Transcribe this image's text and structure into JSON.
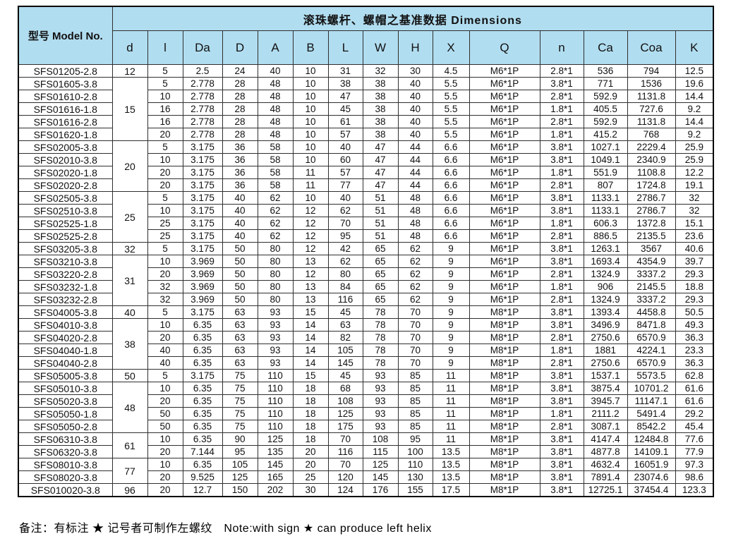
{
  "table": {
    "title": "滚珠螺杆、螺帽之基准数据  Dimensions",
    "model_col_header": "型号 Model No.",
    "dim_columns": [
      "d",
      "l",
      "Da",
      "D",
      "A",
      "B",
      "L",
      "W",
      "H",
      "X",
      "Q",
      "n",
      "Ca",
      "Coa",
      "K"
    ],
    "rows": [
      {
        "model": "SFS01205-2.8",
        "d": "12",
        "d_rowspan": 1,
        "cells": [
          "5",
          "2.5",
          "24",
          "40",
          "10",
          "31",
          "32",
          "30",
          "4.5",
          "M6*1P",
          "2.8*1",
          "536",
          "794",
          "12.5"
        ]
      },
      {
        "model": "SFS01605-3.8",
        "d": "15",
        "d_rowspan": 5,
        "cells": [
          "5",
          "2.778",
          "28",
          "48",
          "10",
          "38",
          "38",
          "40",
          "5.5",
          "M6*1P",
          "3.8*1",
          "771",
          "1536",
          "19.6"
        ]
      },
      {
        "model": "SFS01610-2.8",
        "d": null,
        "cells": [
          "10",
          "2.778",
          "28",
          "48",
          "10",
          "47",
          "38",
          "40",
          "5.5",
          "M6*1P",
          "2.8*1",
          "592.9",
          "1131.8",
          "14.4"
        ]
      },
      {
        "model": "SFS01616-1.8",
        "d": null,
        "cells": [
          "16",
          "2.778",
          "28",
          "48",
          "10",
          "45",
          "38",
          "40",
          "5.5",
          "M6*1P",
          "1.8*1",
          "405.5",
          "727.6",
          "9.2"
        ]
      },
      {
        "model": "SFS01616-2.8",
        "d": null,
        "cells": [
          "16",
          "2.778",
          "28",
          "48",
          "10",
          "61",
          "38",
          "40",
          "5.5",
          "M6*1P",
          "2.8*1",
          "592.9",
          "1131.8",
          "14.4"
        ]
      },
      {
        "model": "SFS01620-1.8",
        "d": null,
        "cells": [
          "20",
          "2.778",
          "28",
          "48",
          "10",
          "57",
          "38",
          "40",
          "5.5",
          "M6*1P",
          "1.8*1",
          "415.2",
          "768",
          "9.2"
        ]
      },
      {
        "model": "SFS02005-3.8",
        "d": "20",
        "d_rowspan": 4,
        "cells": [
          "5",
          "3.175",
          "36",
          "58",
          "10",
          "40",
          "47",
          "44",
          "6.6",
          "M6*1P",
          "3.8*1",
          "1027.1",
          "2229.4",
          "25.9"
        ]
      },
      {
        "model": "SFS02010-3.8",
        "d": null,
        "cells": [
          "10",
          "3.175",
          "36",
          "58",
          "10",
          "60",
          "47",
          "44",
          "6.6",
          "M6*1P",
          "3.8*1",
          "1049.1",
          "2340.9",
          "25.9"
        ]
      },
      {
        "model": "SFS02020-1.8",
        "d": null,
        "cells": [
          "20",
          "3.175",
          "36",
          "58",
          "11",
          "57",
          "47",
          "44",
          "6.6",
          "M6*1P",
          "1.8*1",
          "551.9",
          "1108.8",
          "12.2"
        ]
      },
      {
        "model": "SFS02020-2.8",
        "d": null,
        "cells": [
          "20",
          "3.175",
          "36",
          "58",
          "11",
          "77",
          "47",
          "44",
          "6.6",
          "M6*1P",
          "2.8*1",
          "807",
          "1724.8",
          "19.1"
        ]
      },
      {
        "model": "SFS02505-3.8",
        "d": "25",
        "d_rowspan": 4,
        "cells": [
          "5",
          "3.175",
          "40",
          "62",
          "10",
          "40",
          "51",
          "48",
          "6.6",
          "M6*1P",
          "3.8*1",
          "1133.1",
          "2786.7",
          "32"
        ]
      },
      {
        "model": "SFS02510-3.8",
        "d": null,
        "cells": [
          "10",
          "3.175",
          "40",
          "62",
          "12",
          "62",
          "51",
          "48",
          "6.6",
          "M6*1P",
          "3.8*1",
          "1133.1",
          "2786.7",
          "32"
        ]
      },
      {
        "model": "SFS02525-1.8",
        "d": null,
        "cells": [
          "25",
          "3.175",
          "40",
          "62",
          "12",
          "70",
          "51",
          "48",
          "6.6",
          "M6*1P",
          "1.8*1",
          "606.3",
          "1372.8",
          "15.1"
        ]
      },
      {
        "model": "SFS02525-2.8",
        "d": null,
        "cells": [
          "25",
          "3.175",
          "40",
          "62",
          "12",
          "95",
          "51",
          "48",
          "6.6",
          "M6*1P",
          "2.8*1",
          "886.5",
          "2135.5",
          "23.6"
        ]
      },
      {
        "model": "SFS03205-3.8",
        "d": "32",
        "d_rowspan": 1,
        "cells": [
          "5",
          "3.175",
          "50",
          "80",
          "12",
          "42",
          "65",
          "62",
          "9",
          "M6*1P",
          "3.8*1",
          "1263.1",
          "3567",
          "40.6"
        ]
      },
      {
        "model": "SFS03210-3.8",
        "d": "31",
        "d_rowspan": 4,
        "cells": [
          "10",
          "3.969",
          "50",
          "80",
          "13",
          "62",
          "65",
          "62",
          "9",
          "M6*1P",
          "3.8*1",
          "1693.4",
          "4354.9",
          "39.7"
        ]
      },
      {
        "model": "SFS03220-2.8",
        "d": null,
        "cells": [
          "20",
          "3.969",
          "50",
          "80",
          "12",
          "80",
          "65",
          "62",
          "9",
          "M6*1P",
          "2.8*1",
          "1324.9",
          "3337.2",
          "29.3"
        ]
      },
      {
        "model": "SFS03232-1.8",
        "d": null,
        "cells": [
          "32",
          "3.969",
          "50",
          "80",
          "13",
          "84",
          "65",
          "62",
          "9",
          "M6*1P",
          "1.8*1",
          "906",
          "2145.5",
          "18.8"
        ]
      },
      {
        "model": "SFS03232-2.8",
        "d": null,
        "cells": [
          "32",
          "3.969",
          "50",
          "80",
          "13",
          "116",
          "65",
          "62",
          "9",
          "M6*1P",
          "2.8*1",
          "1324.9",
          "3337.2",
          "29.3"
        ]
      },
      {
        "model": "SFS04005-3.8",
        "d": "40",
        "d_rowspan": 1,
        "cells": [
          "5",
          "3.175",
          "63",
          "93",
          "15",
          "45",
          "78",
          "70",
          "9",
          "M8*1P",
          "3.8*1",
          "1393.4",
          "4458.8",
          "50.5"
        ]
      },
      {
        "model": "SFS04010-3.8",
        "d": "38",
        "d_rowspan": 4,
        "cells": [
          "10",
          "6.35",
          "63",
          "93",
          "14",
          "63",
          "78",
          "70",
          "9",
          "M8*1P",
          "3.8*1",
          "3496.9",
          "8471.8",
          "49.3"
        ]
      },
      {
        "model": "SFS04020-2.8",
        "d": null,
        "cells": [
          "20",
          "6.35",
          "63",
          "93",
          "14",
          "82",
          "78",
          "70",
          "9",
          "M8*1P",
          "2.8*1",
          "2750.6",
          "6570.9",
          "36.3"
        ]
      },
      {
        "model": "SFS04040-1.8",
        "d": null,
        "cells": [
          "40",
          "6.35",
          "63",
          "93",
          "14",
          "105",
          "78",
          "70",
          "9",
          "M8*1P",
          "1.8*1",
          "1881",
          "4224.1",
          "23.3"
        ]
      },
      {
        "model": "SFS04040-2.8",
        "d": null,
        "cells": [
          "40",
          "6.35",
          "63",
          "93",
          "14",
          "145",
          "78",
          "70",
          "9",
          "M8*1P",
          "2.8*1",
          "2750.6",
          "6570.9",
          "36.3"
        ]
      },
      {
        "model": "SFS05005-3.8",
        "d": "50",
        "d_rowspan": 1,
        "cells": [
          "5",
          "3.175",
          "75",
          "110",
          "15",
          "45",
          "93",
          "85",
          "11",
          "M8*1P",
          "3.8*1",
          "1537.1",
          "5573.5",
          "62.8"
        ]
      },
      {
        "model": "SFS05010-3.8",
        "d": "48",
        "d_rowspan": 4,
        "cells": [
          "10",
          "6.35",
          "75",
          "110",
          "18",
          "68",
          "93",
          "85",
          "11",
          "M8*1P",
          "3.8*1",
          "3875.4",
          "10701.2",
          "61.6"
        ]
      },
      {
        "model": "SFS05020-3.8",
        "d": null,
        "cells": [
          "20",
          "6.35",
          "75",
          "110",
          "18",
          "108",
          "93",
          "85",
          "11",
          "M8*1P",
          "3.8*1",
          "3945.7",
          "11147.1",
          "61.6"
        ]
      },
      {
        "model": "SFS05050-1.8",
        "d": null,
        "cells": [
          "50",
          "6.35",
          "75",
          "110",
          "18",
          "125",
          "93",
          "85",
          "11",
          "M8*1P",
          "1.8*1",
          "2111.2",
          "5491.4",
          "29.2"
        ]
      },
      {
        "model": "SFS05050-2.8",
        "d": null,
        "cells": [
          "50",
          "6.35",
          "75",
          "110",
          "18",
          "175",
          "93",
          "85",
          "11",
          "M8*1P",
          "2.8*1",
          "3087.1",
          "8542.2",
          "45.4"
        ]
      },
      {
        "model": "SFS06310-3.8",
        "d": "61",
        "d_rowspan": 2,
        "cells": [
          "10",
          "6.35",
          "90",
          "125",
          "18",
          "70",
          "108",
          "95",
          "11",
          "M8*1P",
          "3.8*1",
          "4147.4",
          "12484.8",
          "77.6"
        ]
      },
      {
        "model": "SFS06320-3.8",
        "d": null,
        "cells": [
          "20",
          "7.144",
          "95",
          "135",
          "20",
          "116",
          "115",
          "100",
          "13.5",
          "M8*1P",
          "3.8*1",
          "4877.8",
          "14109.1",
          "77.9"
        ]
      },
      {
        "model": "SFS08010-3.8",
        "d": "77",
        "d_rowspan": 2,
        "cells": [
          "10",
          "6.35",
          "105",
          "145",
          "20",
          "70",
          "125",
          "110",
          "13.5",
          "M8*1P",
          "3.8*1",
          "4632.4",
          "16051.9",
          "97.3"
        ]
      },
      {
        "model": "SFS08020-3.8",
        "d": null,
        "cells": [
          "20",
          "9.525",
          "125",
          "165",
          "25",
          "120",
          "145",
          "130",
          "13.5",
          "M8*1P",
          "3.8*1",
          "7891.4",
          "23074.6",
          "98.6"
        ]
      },
      {
        "model": "SFS010020-3.8",
        "d": "96",
        "d_rowspan": 1,
        "cells": [
          "20",
          "12.7",
          "150",
          "202",
          "30",
          "124",
          "176",
          "155",
          "17.5",
          "M8*1P",
          "3.8*1",
          "12725.1",
          "37454.4",
          "123.3"
        ]
      }
    ]
  },
  "footnote": "备注：有标注 ★ 记号者可制作左螺纹　Note:with sign ★ can produce left helix",
  "colors": {
    "header_bg": "#b1ddf0",
    "border": "#2f2f2f",
    "text": "#111111"
  }
}
